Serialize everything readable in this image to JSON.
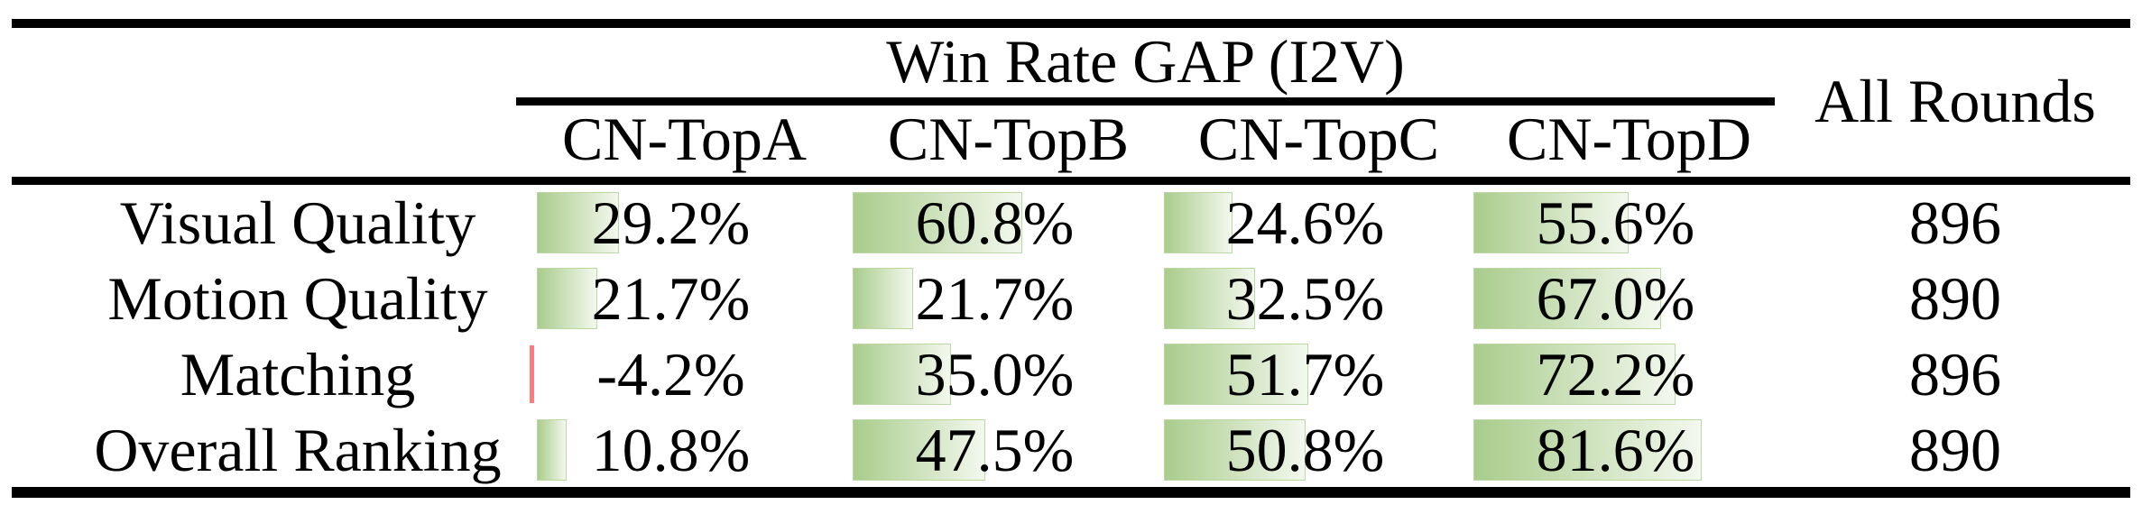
{
  "table": {
    "group_header": "Win Rate GAP (I2V)",
    "all_rounds_header": "All Rounds",
    "columns": [
      "CN-TopA",
      "CN-TopB",
      "CN-TopC",
      "CN-TopD"
    ],
    "rows": [
      {
        "label": "Visual Quality",
        "values": [
          "29.2%",
          "60.8%",
          "24.6%",
          "55.6%"
        ],
        "all_rounds": "896"
      },
      {
        "label": "Motion Quality",
        "values": [
          "21.7%",
          "21.7%",
          "32.5%",
          "67.0%"
        ],
        "all_rounds": "890"
      },
      {
        "label": "Matching",
        "values": [
          "-4.2%",
          "35.0%",
          "51.7%",
          "72.2%"
        ],
        "all_rounds": "896"
      },
      {
        "label": "Overall Ranking",
        "values": [
          "10.8%",
          "47.5%",
          "50.8%",
          "81.6%"
        ],
        "all_rounds": "890"
      }
    ]
  },
  "colors": {
    "bar_positive": "#a9cc8c",
    "bar_fade": "#f3f8ee",
    "bar_border": "#bcd8a4",
    "bar_negative": "#f97d7d",
    "rule": "#000000",
    "text": "#000000",
    "background": "#ffffff"
  },
  "chart_data": {
    "type": "table",
    "title": "Win Rate GAP (I2V)",
    "columns": [
      "CN-TopA",
      "CN-TopB",
      "CN-TopC",
      "CN-TopD",
      "All Rounds"
    ],
    "rows": [
      {
        "label": "Visual Quality",
        "win_rate_gap_pct": [
          29.2,
          60.8,
          24.6,
          55.6
        ],
        "all_rounds": 896
      },
      {
        "label": "Motion Quality",
        "win_rate_gap_pct": [
          21.7,
          21.7,
          32.5,
          67.0
        ],
        "all_rounds": 890
      },
      {
        "label": "Matching",
        "win_rate_gap_pct": [
          -4.2,
          35.0,
          51.7,
          72.2
        ],
        "all_rounds": 896
      },
      {
        "label": "Overall Ranking",
        "win_rate_gap_pct": [
          10.8,
          47.5,
          50.8,
          81.6
        ],
        "all_rounds": 890
      }
    ],
    "notes": "in-cell green gradient data bars proportional to percentage; negative value shown as thin red bar"
  }
}
